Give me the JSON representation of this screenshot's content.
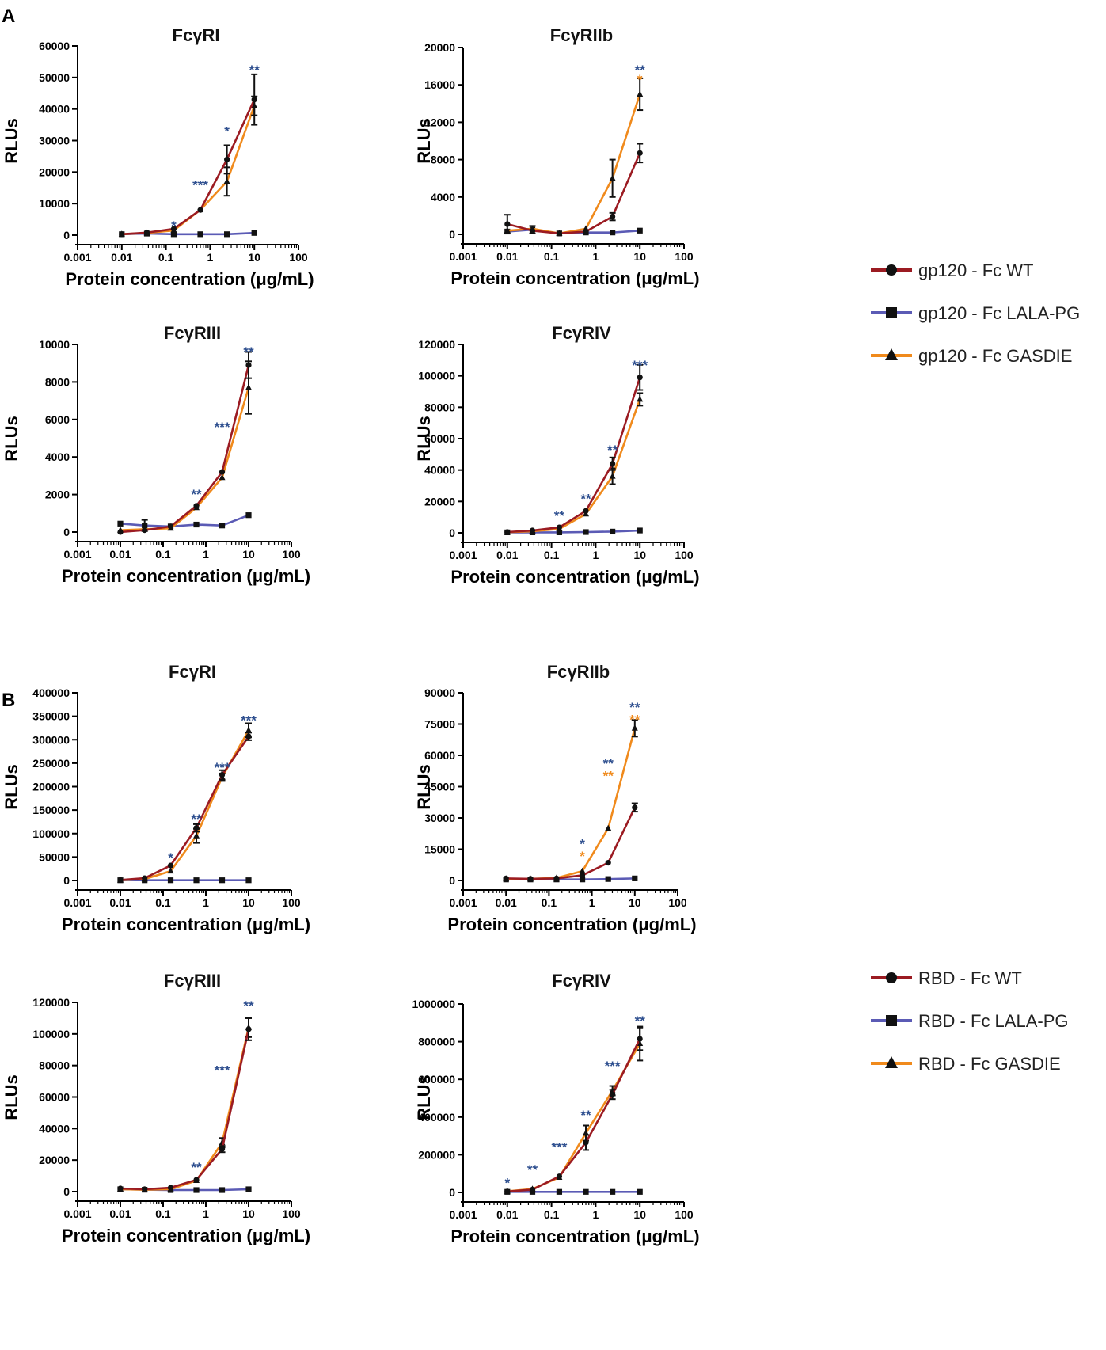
{
  "colors": {
    "wt": "#9b1b22",
    "lala": "#5b5bb5",
    "gasdie": "#f08a1c",
    "star_blue": "#2e4f8f",
    "star_orange": "#f08a1c",
    "marker": "#111111"
  },
  "panel_labels": [
    "A",
    "B"
  ],
  "legends": [
    {
      "items": [
        {
          "name": "gp120 - Fc WT",
          "marker": "circle",
          "color": "#9b1b22"
        },
        {
          "name": "gp120 - Fc LALA-PG",
          "marker": "square",
          "color": "#5b5bb5"
        },
        {
          "name": "gp120 - Fc GASDIE",
          "marker": "triangle",
          "color": "#f08a1c"
        }
      ]
    },
    {
      "items": [
        {
          "name": "RBD - Fc WT",
          "marker": "circle",
          "color": "#9b1b22"
        },
        {
          "name": "RBD - Fc LALA-PG",
          "marker": "square",
          "color": "#5b5bb5"
        },
        {
          "name": "RBD - Fc GASDIE",
          "marker": "triangle",
          "color": "#f08a1c"
        }
      ]
    }
  ],
  "chart_data": [
    {
      "type": "line",
      "title": "FcγRI",
      "xlabel": "Protein concentration (μg/mL)",
      "ylabel": "RLUs",
      "xscale": "log",
      "xticks": [
        "0.001",
        "0.01",
        "0.1",
        "1",
        "10",
        "100"
      ],
      "ylim": [
        0,
        60000
      ],
      "yticks": [
        "0",
        "10000",
        "20000",
        "30000",
        "40000",
        "50000",
        "60000"
      ],
      "x": [
        0.01,
        0.037,
        0.15,
        0.6,
        2.4,
        10
      ],
      "series": [
        {
          "name": "gp120 - Fc WT",
          "values": [
            300,
            800,
            2000,
            8000,
            24000,
            43000
          ],
          "errors": [
            0,
            0,
            0,
            0,
            4500,
            8000
          ]
        },
        {
          "name": "gp120 - Fc LALA-PG",
          "values": [
            300,
            500,
            300,
            300,
            300,
            700
          ],
          "errors": [
            0,
            0,
            0,
            0,
            0,
            0
          ]
        },
        {
          "name": "gp120 - Fc GASDIE",
          "values": [
            300,
            700,
            1500,
            8000,
            17000,
            41000
          ],
          "errors": [
            0,
            0,
            0,
            0,
            4500,
            3000
          ]
        }
      ],
      "annotations": [
        {
          "x": 0.15,
          "y": 3500,
          "text": "*",
          "color": "blue"
        },
        {
          "x": 0.6,
          "y": 16500,
          "text": "***",
          "color": "blue"
        },
        {
          "x": 2.4,
          "y": 33500,
          "text": "*",
          "color": "blue"
        },
        {
          "x": 10,
          "y": 53000,
          "text": "**",
          "color": "blue"
        }
      ]
    },
    {
      "type": "line",
      "title": "FcγRIIb",
      "xlabel": "Protein concentration (μg/mL)",
      "ylabel": "RLUs",
      "xscale": "log",
      "xticks": [
        "0.001",
        "0.01",
        "0.1",
        "1",
        "10",
        "100"
      ],
      "ylim": [
        0,
        20000
      ],
      "yticks": [
        "0",
        "4000",
        "8000",
        "12000",
        "16000",
        "20000"
      ],
      "x": [
        0.01,
        0.037,
        0.15,
        0.6,
        2.4,
        10
      ],
      "series": [
        {
          "name": "gp120 - Fc WT",
          "values": [
            1100,
            400,
            100,
            300,
            1900,
            8700
          ],
          "errors": [
            1000,
            0,
            0,
            0,
            400,
            1000
          ]
        },
        {
          "name": "gp120 - Fc LALA-PG",
          "values": [
            300,
            500,
            100,
            200,
            200,
            400
          ],
          "errors": [
            0,
            400,
            0,
            0,
            0,
            0
          ]
        },
        {
          "name": "gp120 - Fc GASDIE",
          "values": [
            400,
            600,
            100,
            600,
            6000,
            15000
          ],
          "errors": [
            0,
            0,
            0,
            0,
            2000,
            1700
          ]
        }
      ],
      "annotations": [
        {
          "x": 10,
          "y": 17800,
          "text": "**",
          "color": "blue"
        },
        {
          "x": 10,
          "y": 16800,
          "text": "*",
          "color": "orange"
        }
      ]
    },
    {
      "type": "line",
      "title": "FcγRIII",
      "xlabel": "Protein concentration (μg/mL)",
      "ylabel": "RLUs",
      "xscale": "log",
      "xticks": [
        "0.001",
        "0.01",
        "0.1",
        "1",
        "10",
        "100"
      ],
      "ylim": [
        0,
        10000
      ],
      "yticks": [
        "0",
        "2000",
        "4000",
        "6000",
        "8000",
        "10000"
      ],
      "x": [
        0.01,
        0.037,
        0.15,
        0.6,
        2.4,
        10
      ],
      "series": [
        {
          "name": "gp120 - Fc WT",
          "values": [
            0,
            100,
            300,
            1400,
            3200,
            8900
          ],
          "errors": [
            0,
            0,
            0,
            0,
            0,
            700
          ]
        },
        {
          "name": "gp120 - Fc LALA-PG",
          "values": [
            450,
            350,
            300,
            400,
            350,
            900
          ],
          "errors": [
            0,
            300,
            0,
            0,
            0,
            0
          ]
        },
        {
          "name": "gp120 - Fc GASDIE",
          "values": [
            100,
            150,
            200,
            1300,
            2900,
            7700
          ],
          "errors": [
            0,
            0,
            0,
            0,
            0,
            1400
          ]
        }
      ],
      "annotations": [
        {
          "x": 0.6,
          "y": 2100,
          "text": "**",
          "color": "blue"
        },
        {
          "x": 2.4,
          "y": 5700,
          "text": "***",
          "color": "blue"
        },
        {
          "x": 10,
          "y": 9700,
          "text": "**",
          "color": "blue"
        }
      ]
    },
    {
      "type": "line",
      "title": "FcγRIV",
      "xlabel": "Protein concentration (μg/mL)",
      "ylabel": "RLUs",
      "xscale": "log",
      "xticks": [
        "0.001",
        "0.01",
        "0.1",
        "1",
        "10",
        "100"
      ],
      "ylim": [
        0,
        120000
      ],
      "yticks": [
        "0",
        "20000",
        "40000",
        "60000",
        "80000",
        "100000",
        "120000"
      ],
      "x": [
        0.01,
        0.037,
        0.15,
        0.6,
        2.4,
        10
      ],
      "series": [
        {
          "name": "gp120 - Fc WT",
          "values": [
            500,
            1500,
            3500,
            14000,
            44000,
            99000
          ],
          "errors": [
            0,
            0,
            0,
            0,
            4000,
            8000
          ]
        },
        {
          "name": "gp120 - Fc LALA-PG",
          "values": [
            300,
            300,
            300,
            500,
            800,
            1500
          ],
          "errors": [
            0,
            0,
            0,
            0,
            0,
            0
          ]
        },
        {
          "name": "gp120 - Fc GASDIE",
          "values": [
            400,
            1000,
            2500,
            12000,
            36000,
            85000
          ],
          "errors": [
            0,
            0,
            0,
            0,
            5000,
            4000
          ]
        }
      ],
      "annotations": [
        {
          "x": 0.15,
          "y": 12000,
          "text": "**",
          "color": "blue"
        },
        {
          "x": 0.6,
          "y": 23000,
          "text": "**",
          "color": "blue"
        },
        {
          "x": 2.4,
          "y": 54000,
          "text": "**",
          "color": "blue"
        },
        {
          "x": 10,
          "y": 108000,
          "text": "***",
          "color": "blue"
        }
      ]
    },
    {
      "type": "line",
      "title": "FcγRI",
      "xlabel": "Protein concentration (μg/mL)",
      "ylabel": "RLUs",
      "xscale": "log",
      "xticks": [
        "0.001",
        "0.01",
        "0.1",
        "1",
        "10",
        "100"
      ],
      "ylim": [
        0,
        400000
      ],
      "yticks": [
        "0",
        "50000",
        "100000",
        "150000",
        "200000",
        "250000",
        "300000",
        "350000",
        "400000"
      ],
      "x": [
        0.01,
        0.037,
        0.15,
        0.6,
        2.4,
        10
      ],
      "series": [
        {
          "name": "RBD - Fc WT",
          "values": [
            1000,
            5000,
            32000,
            112000,
            225000,
            307000
          ],
          "errors": [
            0,
            0,
            0,
            8000,
            10000,
            8000
          ]
        },
        {
          "name": "RBD - Fc LALA-PG",
          "values": [
            500,
            500,
            500,
            500,
            500,
            500
          ],
          "errors": [
            0,
            0,
            0,
            0,
            0,
            0
          ]
        },
        {
          "name": "RBD - Fc GASDIE",
          "values": [
            800,
            3000,
            20000,
            95000,
            220000,
            320000
          ],
          "errors": [
            0,
            0,
            0,
            15000,
            8000,
            15000
          ]
        }
      ],
      "annotations": [
        {
          "x": 0.15,
          "y": 52000,
          "text": "*",
          "color": "blue"
        },
        {
          "x": 0.6,
          "y": 135000,
          "text": "**",
          "color": "blue"
        },
        {
          "x": 2.4,
          "y": 245000,
          "text": "***",
          "color": "blue"
        },
        {
          "x": 10,
          "y": 345000,
          "text": "***",
          "color": "blue"
        }
      ]
    },
    {
      "type": "line",
      "title": "FcγRIIb",
      "xlabel": "Protein concentration (μg/mL)",
      "ylabel": "RLUs",
      "xscale": "log",
      "xticks": [
        "0.001",
        "0.01",
        "0.1",
        "1",
        "10",
        "100"
      ],
      "ylim": [
        0,
        90000
      ],
      "yticks": [
        "0",
        "15000",
        "30000",
        "45000",
        "60000",
        "75000",
        "90000"
      ],
      "x": [
        0.01,
        0.037,
        0.15,
        0.6,
        2.4,
        10
      ],
      "series": [
        {
          "name": "RBD - Fc WT",
          "values": [
            1000,
            800,
            1000,
            2500,
            8500,
            35000
          ],
          "errors": [
            0,
            0,
            0,
            0,
            0,
            2000
          ]
        },
        {
          "name": "RBD - Fc LALA-PG",
          "values": [
            500,
            500,
            500,
            500,
            700,
            1000
          ],
          "errors": [
            0,
            0,
            0,
            0,
            0,
            0
          ]
        },
        {
          "name": "RBD - Fc GASDIE",
          "values": [
            800,
            800,
            1200,
            4500,
            25000,
            73000
          ],
          "errors": [
            0,
            0,
            0,
            0,
            0,
            4000
          ]
        }
      ],
      "annotations": [
        {
          "x": 0.6,
          "y": 18500,
          "text": "*",
          "color": "blue"
        },
        {
          "x": 0.6,
          "y": 12500,
          "text": "*",
          "color": "orange"
        },
        {
          "x": 2.4,
          "y": 57000,
          "text": "**",
          "color": "blue"
        },
        {
          "x": 2.4,
          "y": 51000,
          "text": "**",
          "color": "orange"
        },
        {
          "x": 10,
          "y": 84000,
          "text": "**",
          "color": "blue"
        },
        {
          "x": 10,
          "y": 78000,
          "text": "**",
          "color": "orange"
        }
      ]
    },
    {
      "type": "line",
      "title": "FcγRIII",
      "xlabel": "Protein concentration (μg/mL)",
      "ylabel": "RLUs",
      "xscale": "log",
      "xticks": [
        "0.001",
        "0.01",
        "0.1",
        "1",
        "10",
        "100"
      ],
      "ylim": [
        0,
        120000
      ],
      "yticks": [
        "0",
        "20000",
        "40000",
        "60000",
        "80000",
        "100000",
        "120000"
      ],
      "x": [
        0.01,
        0.037,
        0.15,
        0.6,
        2.4,
        10
      ],
      "series": [
        {
          "name": "RBD - Fc WT",
          "values": [
            2000,
            1500,
            2500,
            7500,
            27000,
            103000
          ],
          "errors": [
            0,
            0,
            0,
            0,
            2000,
            7000
          ]
        },
        {
          "name": "RBD - Fc LALA-PG",
          "values": [
            1500,
            1200,
            1000,
            1000,
            1000,
            1500
          ],
          "errors": [
            0,
            0,
            0,
            0,
            0,
            0
          ]
        },
        {
          "name": "RBD - Fc GASDIE",
          "values": [
            1500,
            1200,
            1500,
            7000,
            31000,
            104000
          ],
          "errors": [
            0,
            0,
            0,
            0,
            3000,
            6000
          ]
        }
      ],
      "annotations": [
        {
          "x": 0.6,
          "y": 16500,
          "text": "**",
          "color": "blue"
        },
        {
          "x": 2.4,
          "y": 78000,
          "text": "***",
          "color": "blue"
        },
        {
          "x": 10,
          "y": 119000,
          "text": "**",
          "color": "blue"
        }
      ]
    },
    {
      "type": "line",
      "title": "FcγRIV",
      "xlabel": "Protein concentration (μg/mL)",
      "ylabel": "RLUs",
      "xscale": "log",
      "xticks": [
        "0.001",
        "0.01",
        "0.1",
        "1",
        "10",
        "100"
      ],
      "ylim": [
        0,
        1000000
      ],
      "yticks": [
        "0",
        "200000",
        "400000",
        "600000",
        "800000",
        "1000000"
      ],
      "x": [
        0.01,
        0.037,
        0.15,
        0.6,
        2.4,
        10
      ],
      "series": [
        {
          "name": "RBD - Fc WT",
          "values": [
            5000,
            15000,
            85000,
            265000,
            520000,
            815000
          ],
          "errors": [
            0,
            0,
            0,
            40000,
            25000,
            60000
          ]
        },
        {
          "name": "RBD - Fc LALA-PG",
          "values": [
            3000,
            3000,
            3000,
            3000,
            3000,
            3000
          ],
          "errors": [
            0,
            0,
            0,
            0,
            0,
            0
          ]
        },
        {
          "name": "RBD - Fc GASDIE",
          "values": [
            6000,
            18000,
            80000,
            315000,
            540000,
            790000
          ],
          "errors": [
            0,
            0,
            0,
            40000,
            25000,
            90000
          ]
        }
      ],
      "annotations": [
        {
          "x": 0.01,
          "y": 60000,
          "text": "*",
          "color": "blue"
        },
        {
          "x": 0.037,
          "y": 130000,
          "text": "**",
          "color": "blue"
        },
        {
          "x": 0.15,
          "y": 250000,
          "text": "***",
          "color": "blue"
        },
        {
          "x": 0.6,
          "y": 420000,
          "text": "**",
          "color": "blue"
        },
        {
          "x": 2.4,
          "y": 680000,
          "text": "***",
          "color": "blue"
        },
        {
          "x": 10,
          "y": 920000,
          "text": "**",
          "color": "blue"
        }
      ]
    }
  ]
}
